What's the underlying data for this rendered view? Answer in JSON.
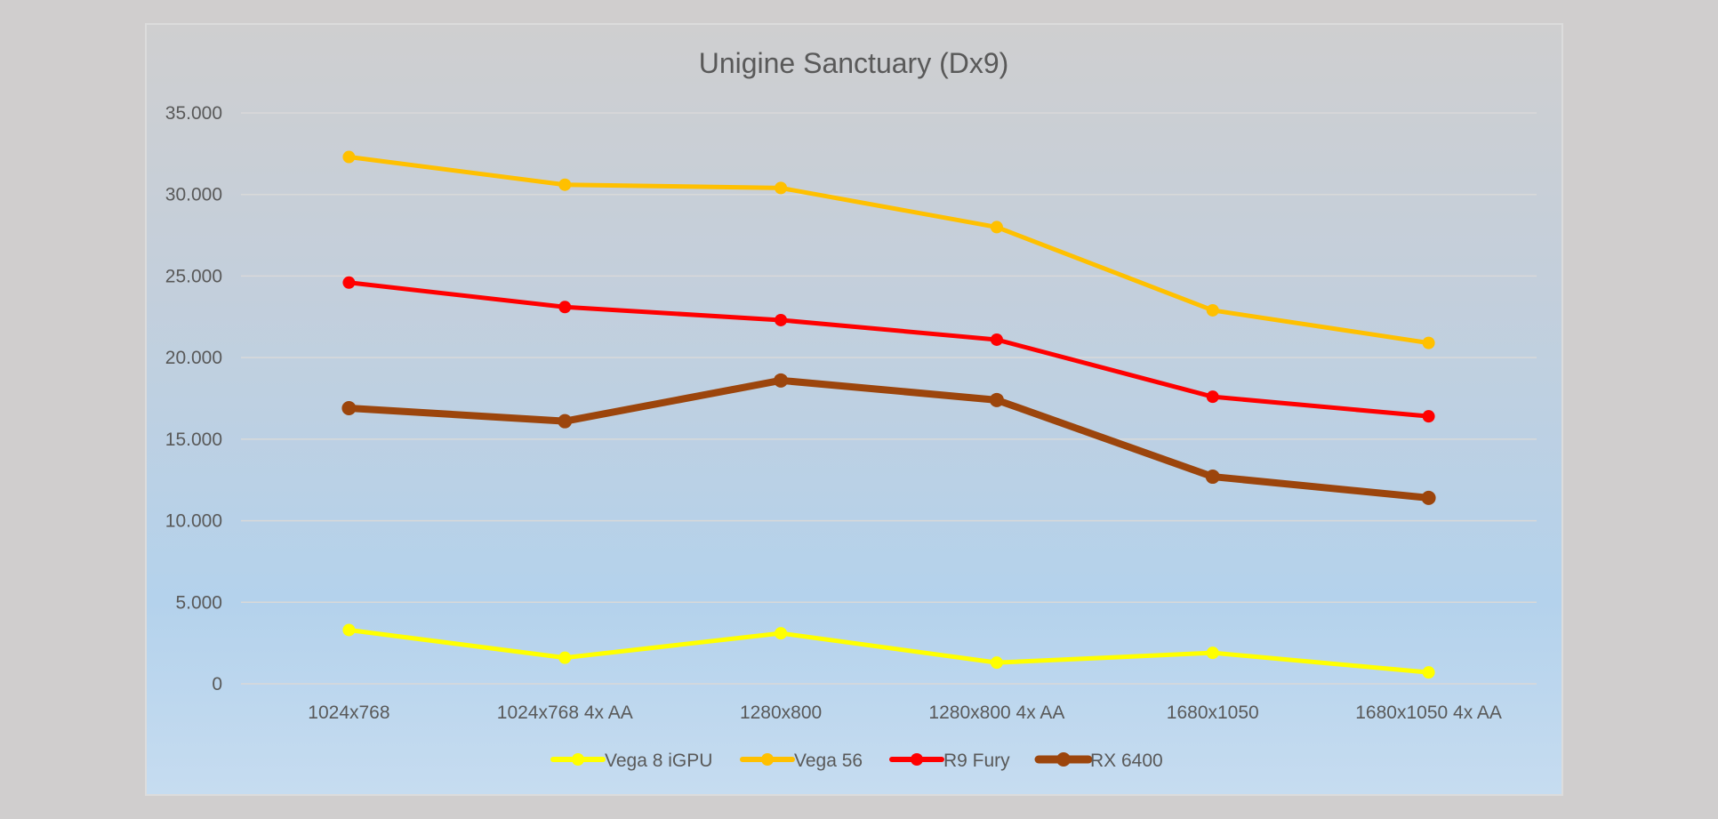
{
  "chart_data": {
    "type": "line",
    "title": "Unigine Sanctuary (Dx9)",
    "xlabel": "",
    "ylabel": "",
    "categories": [
      "1024x768",
      "1024x768 4x AA",
      "1280x800",
      "1280x800 4x AA",
      "1680x1050",
      "1680x1050 4x AA"
    ],
    "ylim": [
      0,
      35
    ],
    "yticks": [
      0,
      5,
      10,
      15,
      20,
      25,
      30,
      35
    ],
    "ytick_labels": [
      "0",
      "5.000",
      "10.000",
      "15.000",
      "20.000",
      "25.000",
      "30.000",
      "35.000"
    ],
    "grid": true,
    "legend_position": "bottom",
    "series": [
      {
        "name": "Vega 8 iGPU",
        "color": "#ffff00",
        "values": [
          3.3,
          1.6,
          3.1,
          1.3,
          1.9,
          0.7
        ]
      },
      {
        "name": "Vega 56",
        "color": "#ffc000",
        "values": [
          32.3,
          30.6,
          30.4,
          28.0,
          22.9,
          20.9
        ]
      },
      {
        "name": "R9 Fury",
        "color": "#ff0000",
        "values": [
          24.6,
          23.1,
          22.3,
          21.1,
          17.6,
          16.4
        ]
      },
      {
        "name": "RX 6400",
        "color": "#9c450c",
        "values": [
          16.9,
          16.1,
          18.6,
          17.4,
          12.7,
          11.4
        ]
      }
    ]
  }
}
